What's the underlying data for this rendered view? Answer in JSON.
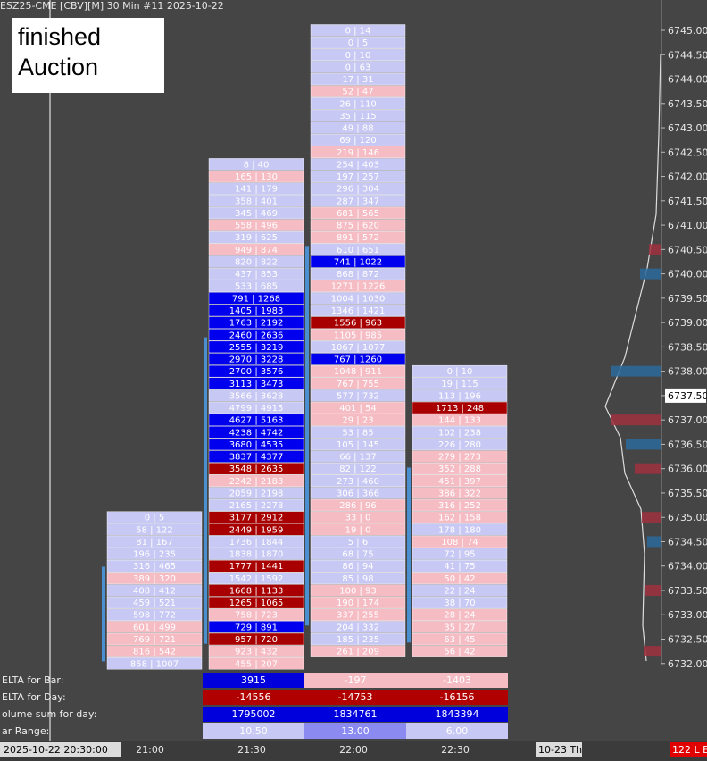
{
  "header": {
    "title": "ESZ25-CME [CBV][M]  30 Min  #11 2025-10-22"
  },
  "note": {
    "line1": "finished",
    "line2": "Auction"
  },
  "chart_data": {
    "type": "table",
    "tick_size": 0.25,
    "y_range": [
      6731.75,
      6745.25
    ],
    "price_labels": [
      "6745.00",
      "6744.50",
      "6744.00",
      "6743.50",
      "6743.00",
      "6742.50",
      "6742.00",
      "6741.50",
      "6741.00",
      "6740.50",
      "6740.00",
      "6739.50",
      "6739.00",
      "6738.50",
      "6738.00",
      "6737.50",
      "6737.00",
      "6736.50",
      "6736.00",
      "6735.50",
      "6735.00",
      "6734.50",
      "6734.00",
      "6733.50",
      "6733.00",
      "6732.50",
      "6732.00"
    ],
    "current_price": "6737.50",
    "x_labels": [
      "21:00",
      "21:30",
      "22:00",
      "22:30"
    ],
    "date_label": "2025-10-22  20:30:00",
    "right_date_label": "10-23 Th",
    "right_badge": "122 L E",
    "bars": [
      {
        "time": "21:00",
        "high": 6735.0,
        "cells": [
          "0 | 5",
          "58 | 122",
          "81 | 167",
          "196 | 235",
          "316 | 465",
          "389 | 320",
          "408 | 412",
          "459 | 521",
          "598 | 772",
          "601 | 499",
          "769 | 721",
          "816 | 542",
          "858 | 1007"
        ]
      },
      {
        "time": "21:30",
        "high": 6742.25,
        "cells": [
          "8 | 40",
          "165 | 130",
          "141 | 179",
          "358 | 401",
          "345 | 469",
          "558 | 496",
          "319 | 625",
          "949 | 874",
          "820 | 822",
          "437 | 853",
          "533 | 685",
          "791 | 1268",
          "1405 | 1983",
          "1763 | 2192",
          "2460 | 2636",
          "2555 | 3219",
          "2970 | 3228",
          "2700 | 3576",
          "3113 | 3473",
          "3566 | 3628",
          "4799 | 4915",
          "4627 | 5163",
          "4238 | 4742",
          "3680 | 4535",
          "3837 | 4377",
          "3548 | 2635",
          "2242 | 2183",
          "2059 | 2198",
          "2165 | 2278",
          "3177 | 2912",
          "2449 | 1959",
          "1736 | 1844",
          "1838 | 1870",
          "1777 | 1441",
          "1542 | 1592",
          "1668 | 1133",
          "1265 | 1065",
          "758 | 723",
          "729 | 891",
          "957 | 720",
          "923 | 432",
          "455 | 207"
        ]
      },
      {
        "time": "22:00",
        "high": 6745.0,
        "cells": [
          "0 | 14",
          "0 | 5",
          "0 | 10",
          "0 | 63",
          "17 | 31",
          "52 | 47",
          "26 | 110",
          "35 | 115",
          "49 | 88",
          "69 | 120",
          "219 | 146",
          "254 | 403",
          "197 | 257",
          "296 | 304",
          "287 | 347",
          "681 | 565",
          "875 | 620",
          "891 | 572",
          "610 | 651",
          "741 | 1022",
          "868 | 872",
          "1271 | 1226",
          "1004 | 1030",
          "1346 | 1421",
          "1556 | 963",
          "1105 | 985",
          "1067 | 1077",
          "767 | 1260",
          "1048 | 911",
          "767 | 755",
          "577 | 732",
          "401 | 54",
          "29 | 23",
          "53 | 85",
          "105 | 145",
          "66 | 137",
          "82 | 122",
          "273 | 460",
          "306 | 366",
          "286 | 96",
          "33 | 0",
          "19 | 0",
          "5 | 6",
          "68 | 75",
          "86 | 94",
          "85 | 98",
          "100 | 93",
          "190 | 174",
          "337 | 255",
          "204 | 332",
          "185 | 235",
          "261 | 209"
        ]
      },
      {
        "time": "22:30",
        "high": 6738.0,
        "cells": [
          "0 | 10",
          "19 | 115",
          "113 | 196",
          "1713 | 248",
          "144 | 133",
          "102 | 238",
          "226 | 280",
          "279 | 273",
          "352 | 288",
          "451 | 397",
          "386 | 322",
          "316 | 252",
          "162 | 158",
          "178 | 180",
          "108 | 74",
          "72 | 95",
          "41 | 75",
          "50 | 42",
          "22 | 24",
          "38 | 70",
          "28 | 24",
          "35 | 27",
          "63 | 45",
          "56 | 42"
        ]
      }
    ],
    "summary_rows": [
      {
        "label": "ELTA for Bar:",
        "values": [
          "3915",
          "-197",
          "-1403"
        ]
      },
      {
        "label": "ELTA for Day:",
        "values": [
          "-14556",
          "-14753",
          "-16156"
        ]
      },
      {
        "label": "olume sum for day:",
        "values": [
          "1795002",
          "1834761",
          "1843394"
        ]
      },
      {
        "label": "ar Range:",
        "values": [
          "10.50",
          "13.00",
          "6.00"
        ]
      }
    ]
  },
  "colors": {
    "background": "#454545",
    "neutral_cell": "#c8c8f4",
    "light_red": "#f6bcc4",
    "dark_red": "#a80000",
    "blue": "#0000ee",
    "strong_blue": "#0000dd",
    "strong_red": "#b00000"
  }
}
